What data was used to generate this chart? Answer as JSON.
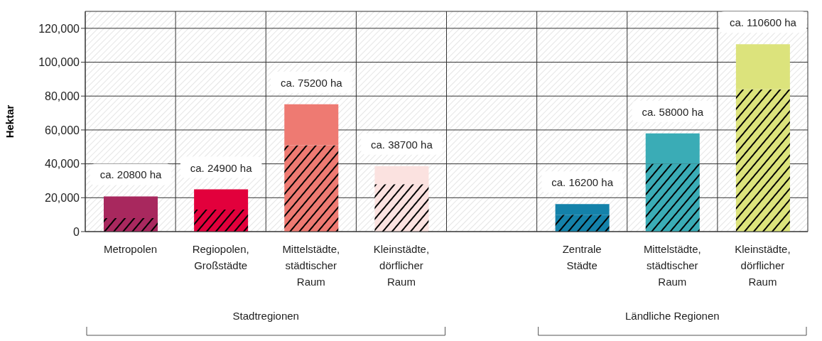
{
  "chart_data": {
    "type": "bar",
    "stacked": true,
    "ylabel": "Hektar",
    "categories": [
      "Metropolen",
      "Regiopolen, Großstädte",
      "Mittelstädte, städtischer Raum",
      "Kleinstädte, dörflicher Raum",
      null,
      "Zentrale Städte",
      "Mittelstädte, städtischer Raum",
      "Kleinstädte, dörflicher Raum"
    ],
    "series": [
      {
        "colors": [
          "#a8285e",
          "#e2003c",
          "#ee7a72",
          "#fbe2e0",
          null,
          "#1482aa",
          "#3aacb6",
          "#dce37c"
        ],
        "values": [
          8000,
          13000,
          51000,
          28000,
          null,
          10000,
          40000,
          84000
        ]
      },
      {
        "colors": [
          "#a8285e",
          "#e2003c",
          "#ee7a72",
          "#fbe2e0",
          null,
          "#1482aa",
          "#3aacb6",
          "#dce37c"
        ],
        "values": [
          12800,
          11900,
          24200,
          10700,
          null,
          6200,
          18000,
          26600
        ]
      }
    ],
    "totals": [
      "ca. 20800 ha",
      "ca. 24900 ha",
      "ca. 75200 ha",
      "ca. 38700 ha",
      null,
      "ca. 16200 ha",
      "ca. 58000 ha",
      "ca. 110600 ha"
    ],
    "ylim": [
      0,
      130000
    ],
    "yticks": [
      0,
      {
        "value": 20000,
        "label": "20,000"
      },
      {
        "value": 40000,
        "label": "40,000"
      },
      {
        "value": 60000,
        "label": "60,000"
      },
      {
        "value": 80000,
        "label": "80,000"
      },
      {
        "value": 100000,
        "label": "100,000"
      },
      {
        "value": 120000,
        "label": "120,000"
      }
    ],
    "grid": true,
    "annotations": [
      "Stadtregionen",
      "Ländliche Regionen"
    ]
  }
}
